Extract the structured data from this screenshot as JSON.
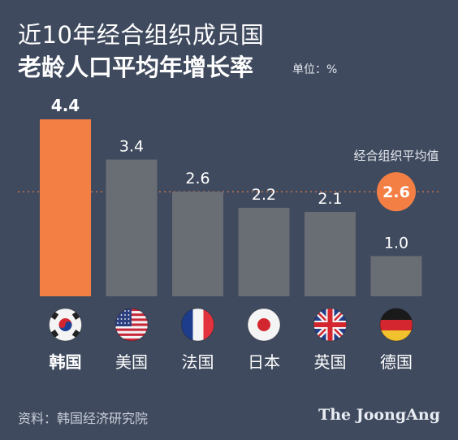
{
  "header": {
    "title_line1": "近10年经合组织成员国",
    "title_line2": "老龄人口平均年增长率",
    "unit": "单位：%"
  },
  "footer": {
    "source": "资料：韩国经济研究院",
    "logo": "The JoongAng"
  },
  "colors": {
    "highlight": "#f47f45",
    "bar": "#696d74",
    "background": "#3f4a5e",
    "avg_line": "#f47f45"
  },
  "chart_data": {
    "type": "bar",
    "title": "近10年经合组织成员国 老龄人口平均年增长率",
    "unit": "%",
    "categories": [
      "韩国",
      "美国",
      "法国",
      "日本",
      "英国",
      "德国"
    ],
    "values": [
      4.4,
      3.4,
      2.6,
      2.2,
      2.1,
      1.0
    ],
    "value_labels": [
      "4.4",
      "3.4",
      "2.6",
      "2.2",
      "2.1",
      "1.0"
    ],
    "highlight_index": 0,
    "ylim": [
      0,
      4.4
    ],
    "reference_line": {
      "label": "经合组织平均值",
      "value": 2.6,
      "value_label": "2.6"
    },
    "flag_icons": [
      "korea-flag-icon",
      "usa-flag-icon",
      "france-flag-icon",
      "japan-flag-icon",
      "uk-flag-icon",
      "germany-flag-icon"
    ]
  }
}
